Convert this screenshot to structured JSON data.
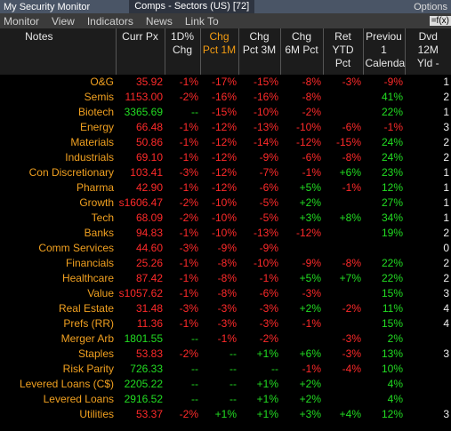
{
  "window": {
    "title": "My Security Monitor",
    "tab": "Comps - Sectors (US) [72]",
    "options": "Options"
  },
  "menu": [
    "Monitor",
    "View",
    "Indicators",
    "News",
    "Link To"
  ],
  "formula": "=f(x)",
  "table": {
    "columns": [
      [
        "Notes"
      ],
      [
        "Curr Px"
      ],
      [
        "1D%",
        "Chg"
      ],
      [
        "Chg",
        "Pct 1M"
      ],
      [
        "Chg",
        "Pct 3M"
      ],
      [
        "Chg",
        "6M Pct"
      ],
      [
        "Ret",
        "YTD",
        "Pct"
      ],
      [
        "Previou",
        "1",
        "Calenda"
      ],
      [
        "Dvd",
        "12M",
        "Yld -"
      ]
    ],
    "rows": [
      [
        "O&G",
        "35.92",
        "-1%",
        "-17%",
        "-15%",
        "-8%",
        "-3%",
        "-9%",
        "1"
      ],
      [
        "Semis",
        "1153.00",
        "-2%",
        "-16%",
        "-16%",
        "-8%",
        null,
        "41%",
        "2"
      ],
      [
        "Biotech",
        "3365.69",
        "--",
        "-15%",
        "-10%",
        "-2%",
        null,
        "22%",
        "1"
      ],
      [
        "Energy",
        "66.48",
        "-1%",
        "-12%",
        "-13%",
        "-10%",
        "-6%",
        "-1%",
        "3"
      ],
      [
        "Materials",
        "50.86",
        "-1%",
        "-12%",
        "-14%",
        "-12%",
        "-15%",
        "24%",
        "2"
      ],
      [
        "Industrials",
        "69.10",
        "-1%",
        "-12%",
        "-9%",
        "-6%",
        "-8%",
        "24%",
        "2"
      ],
      [
        "Con Discretionary",
        "103.41",
        "-3%",
        "-12%",
        "-7%",
        "-1%",
        "+6%",
        "23%",
        "1"
      ],
      [
        "Pharma",
        "42.90",
        "-1%",
        "-12%",
        "-6%",
        "+5%",
        "-1%",
        "12%",
        "1"
      ],
      [
        "Growth",
        "s1606.47",
        "-2%",
        "-10%",
        "-5%",
        "+2%",
        null,
        "27%",
        "1"
      ],
      [
        "Tech",
        "68.09",
        "-2%",
        "-10%",
        "-5%",
        "+3%",
        "+8%",
        "34%",
        "1"
      ],
      [
        "Banks",
        "94.83",
        "-1%",
        "-10%",
        "-13%",
        "-12%",
        null,
        "19%",
        "2"
      ],
      [
        "Comm Services",
        "44.60",
        "-3%",
        "-9%",
        "-9%",
        null,
        null,
        null,
        "0"
      ],
      [
        "Financials",
        "25.26",
        "-1%",
        "-8%",
        "-10%",
        "-9%",
        "-8%",
        "22%",
        "2"
      ],
      [
        "Healthcare",
        "87.42",
        "-1%",
        "-8%",
        "-1%",
        "+5%",
        "+7%",
        "22%",
        "2"
      ],
      [
        "Value",
        "s1057.62",
        "-1%",
        "-8%",
        "-6%",
        "-3%",
        null,
        "15%",
        "3"
      ],
      [
        "Real Estate",
        "31.48",
        "-3%",
        "-3%",
        "-3%",
        "+2%",
        "-2%",
        "11%",
        "4"
      ],
      [
        "Prefs (RR)",
        "11.36",
        "-1%",
        "-3%",
        "-3%",
        "-1%",
        null,
        "15%",
        "4"
      ],
      [
        "Merger Arb",
        "1801.55",
        "--",
        "-1%",
        "-2%",
        null,
        "-3%",
        "2%",
        null
      ],
      [
        "Staples",
        "53.83",
        "-2%",
        "--",
        "+1%",
        "+6%",
        "-3%",
        "13%",
        "3"
      ],
      [
        "Risk Parity",
        "726.33",
        "--",
        "--",
        "--",
        "-1%",
        "-4%",
        "10%",
        null
      ],
      [
        "Levered Loans (C$)",
        "2205.22",
        "--",
        "--",
        "+1%",
        "+2%",
        null,
        "4%",
        null
      ],
      [
        "Levered Loans",
        "2916.52",
        "--",
        "--",
        "+1%",
        "+2%",
        null,
        "4%",
        null
      ],
      [
        "Utilities",
        "53.37",
        "-2%",
        "+1%",
        "+1%",
        "+3%",
        "+4%",
        "12%",
        "3"
      ]
    ]
  }
}
